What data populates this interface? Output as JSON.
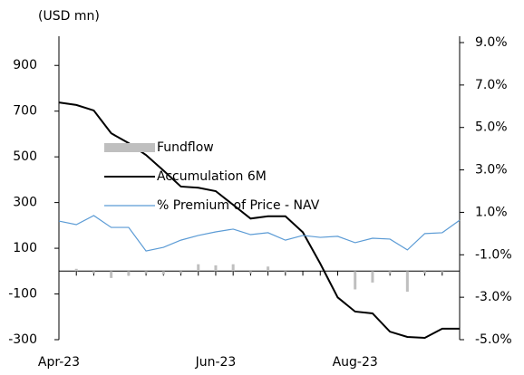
{
  "chart_data": {
    "type": "combo",
    "y_label": "(USD mn)",
    "categories": [
      "Apr-23",
      null,
      null,
      null,
      null,
      null,
      null,
      null,
      null,
      "Jun-23",
      null,
      null,
      null,
      null,
      null,
      null,
      null,
      "Aug-23",
      null,
      null,
      null,
      null,
      null,
      null
    ],
    "series": [
      {
        "name": "Fundflow",
        "type": "bar",
        "color": "#bfbfbf",
        "axis": "y",
        "values": [
          0,
          10,
          -10,
          -30,
          -20,
          -10,
          -15,
          -10,
          30,
          25,
          30,
          -10,
          20,
          -5,
          0,
          0,
          0,
          -80,
          -50,
          -10,
          -90,
          -10,
          -5,
          0
        ]
      },
      {
        "name": "Accumulation 6M",
        "type": "line",
        "color": "#000000",
        "axis": "y",
        "values": [
          738,
          727,
          703,
          603,
          560,
          508,
          440,
          370,
          365,
          350,
          290,
          230,
          240,
          240,
          170,
          33,
          -115,
          -177,
          -185,
          -265,
          -288,
          -292,
          -252,
          -252
        ]
      },
      {
        "name": "% Premium of  Price - NAV",
        "type": "line",
        "color": "#5b9bd5",
        "axis": "y2",
        "values": [
          0.59,
          0.42,
          0.85,
          0.29,
          0.29,
          -0.82,
          -0.65,
          -0.31,
          -0.09,
          0.08,
          0.21,
          -0.05,
          0.04,
          -0.31,
          -0.09,
          -0.18,
          -0.13,
          -0.43,
          -0.22,
          -0.26,
          -0.77,
          0.0,
          0.04,
          0.63
        ]
      }
    ],
    "ylim": [
      -300,
      1000
    ],
    "yticks": [
      -300,
      -100,
      100,
      300,
      500,
      700,
      900
    ],
    "y2lim": [
      -5,
      9
    ],
    "y2ticks": [
      {
        "value": -5,
        "label": "-5.0%"
      },
      {
        "value": -3,
        "label": "-3.0%"
      },
      {
        "value": -1,
        "label": "-1.0%"
      },
      {
        "value": 1,
        "label": "1.0%"
      },
      {
        "value": 3,
        "label": "3.0%"
      },
      {
        "value": 5,
        "label": "5.0%"
      },
      {
        "value": 7,
        "label": "7.0%"
      },
      {
        "value": 9,
        "label": "9.0%"
      }
    ],
    "grid": false
  }
}
